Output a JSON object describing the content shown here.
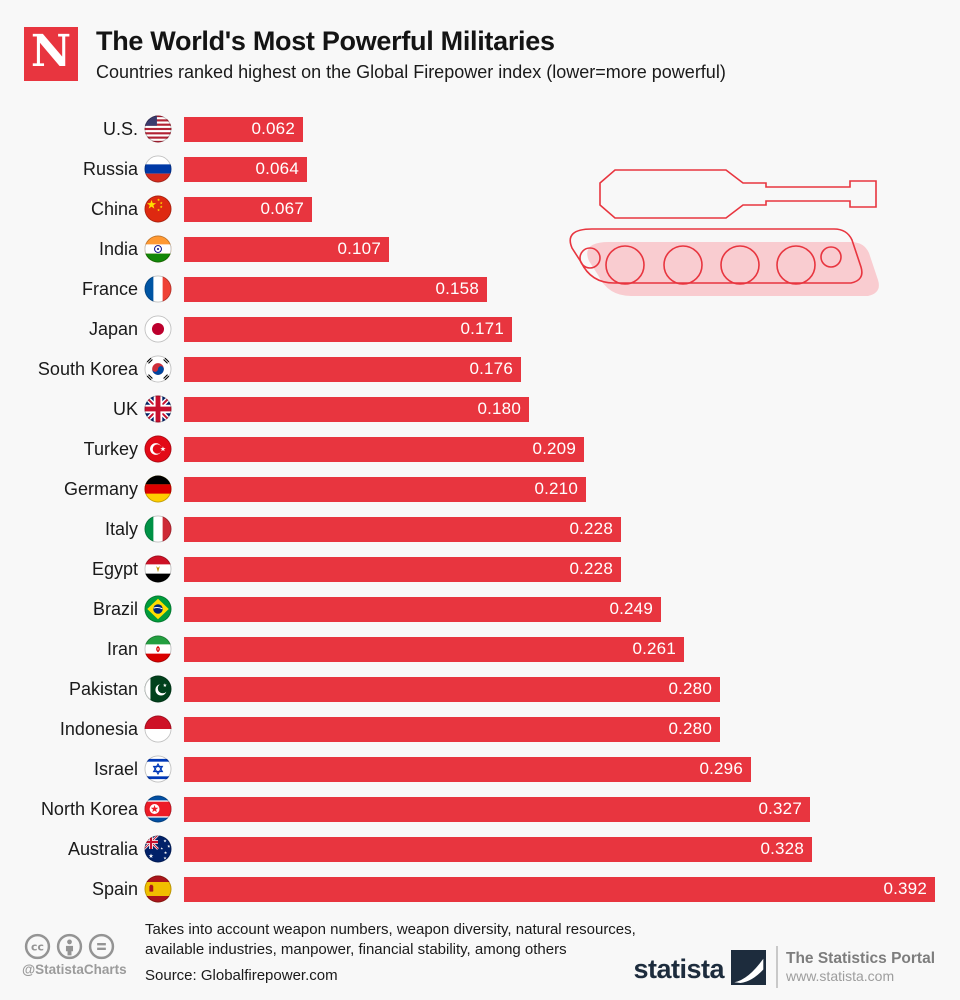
{
  "header": {
    "logo_letter": "N",
    "title": "The World's Most Powerful Militaries",
    "subtitle": "Countries ranked highest on the Global Firepower index (lower=more powerful)"
  },
  "chart_data": {
    "type": "bar",
    "orientation": "horizontal",
    "title": "The World's Most Powerful Militaries",
    "subtitle": "Countries ranked highest on the Global Firepower index (lower=more powerful)",
    "categories": [
      "U.S.",
      "Russia",
      "China",
      "India",
      "France",
      "Japan",
      "South Korea",
      "UK",
      "Turkey",
      "Germany",
      "Italy",
      "Egypt",
      "Brazil",
      "Iran",
      "Pakistan",
      "Indonesia",
      "Israel",
      "North Korea",
      "Australia",
      "Spain"
    ],
    "values": [
      0.062,
      0.064,
      0.067,
      0.107,
      0.158,
      0.171,
      0.176,
      0.18,
      0.209,
      0.21,
      0.228,
      0.228,
      0.249,
      0.261,
      0.28,
      0.28,
      0.296,
      0.327,
      0.328,
      0.392
    ],
    "value_labels": [
      "0.062",
      "0.064",
      "0.067",
      "0.107",
      "0.158",
      "0.171",
      "0.176",
      "0.180",
      "0.209",
      "0.210",
      "0.228",
      "0.228",
      "0.249",
      "0.261",
      "0.280",
      "0.280",
      "0.296",
      "0.327",
      "0.328",
      "0.392"
    ],
    "flag_icons": [
      "flag-us-icon",
      "flag-russia-icon",
      "flag-china-icon",
      "flag-india-icon",
      "flag-france-icon",
      "flag-japan-icon",
      "flag-south-korea-icon",
      "flag-uk-icon",
      "flag-turkey-icon",
      "flag-germany-icon",
      "flag-italy-icon",
      "flag-egypt-icon",
      "flag-brazil-icon",
      "flag-iran-icon",
      "flag-pakistan-icon",
      "flag-indonesia-icon",
      "flag-israel-icon",
      "flag-north-korea-icon",
      "flag-australia-icon",
      "flag-spain-icon"
    ],
    "bar_color": "#e8353f",
    "value_label_position": "inside-right",
    "xlim": [
      0,
      0.392
    ],
    "grid": false,
    "legend": false
  },
  "footer": {
    "license_icons": [
      "cc-icon",
      "attribution-icon",
      "nd-icon"
    ],
    "attribution": "@StatistaCharts",
    "note_line1": "Takes into account weapon numbers, weapon diversity, natural resources,",
    "note_line2": "available industries, manpower, financial stability, among others",
    "source": "Source: Globalfirepower.com",
    "brand": "statista",
    "tagline": "The Statistics Portal",
    "website": "www.statista.com"
  },
  "colors": {
    "accent_red": "#e8353f",
    "tank_shadow_pink": "#f9ccd0",
    "background": "#f8f8f8",
    "statista_navy": "#1d2c3d",
    "footer_gray": "#949494"
  }
}
